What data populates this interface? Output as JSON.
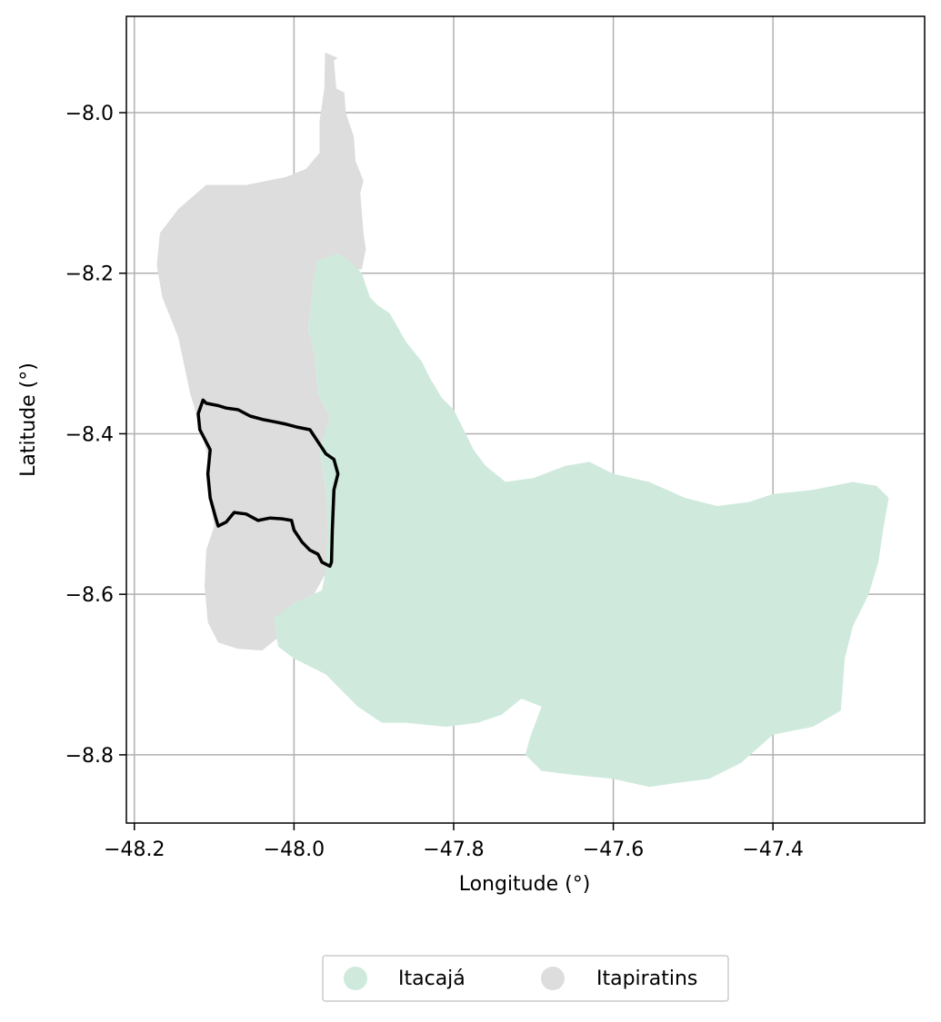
{
  "map": {
    "xlabel": "Longitude (°)",
    "ylabel": "Latitude (°)",
    "x_ticks": [
      {
        "value": -48.2,
        "label": "−48.2"
      },
      {
        "value": -48.0,
        "label": "−48.0"
      },
      {
        "value": -47.8,
        "label": "−47.8"
      },
      {
        "value": -47.6,
        "label": "−47.6"
      },
      {
        "value": -47.4,
        "label": "−47.4"
      }
    ],
    "y_ticks": [
      {
        "value": -8.0,
        "label": "−8.0"
      },
      {
        "value": -8.2,
        "label": "−8.2"
      },
      {
        "value": -8.4,
        "label": "−8.4"
      },
      {
        "value": -8.6,
        "label": "−8.6"
      },
      {
        "value": -8.8,
        "label": "−8.8"
      }
    ],
    "xlim": [
      -48.21,
      -47.21
    ],
    "ylim": [
      -8.885,
      -7.88
    ],
    "grid": true,
    "legend_position": "bottom-center",
    "legend": [
      {
        "label": "Itacajá",
        "color": "#cfeadd"
      },
      {
        "label": "Itapiratins",
        "color": "#dddddd"
      }
    ],
    "outline_color": "#000000",
    "regions": [
      {
        "name": "Itapiratins",
        "color": "#dddddd",
        "polygon": [
          [
            -47.961,
            -7.925
          ],
          [
            -47.945,
            -7.932
          ],
          [
            -47.95,
            -7.935
          ],
          [
            -47.947,
            -7.97
          ],
          [
            -47.937,
            -7.975
          ],
          [
            -47.935,
            -8.0
          ],
          [
            -47.925,
            -8.03
          ],
          [
            -47.923,
            -8.06
          ],
          [
            -47.913,
            -8.085
          ],
          [
            -47.917,
            -8.1
          ],
          [
            -47.913,
            -8.15
          ],
          [
            -47.91,
            -8.17
          ],
          [
            -47.915,
            -8.195
          ],
          [
            -47.975,
            -8.205
          ],
          [
            -47.982,
            -8.27
          ],
          [
            -47.974,
            -8.3
          ],
          [
            -47.97,
            -8.35
          ],
          [
            -47.955,
            -8.38
          ],
          [
            -47.968,
            -8.42
          ],
          [
            -47.96,
            -8.47
          ],
          [
            -47.957,
            -8.52
          ],
          [
            -47.958,
            -8.57
          ],
          [
            -47.975,
            -8.6
          ],
          [
            -48.0,
            -8.615
          ],
          [
            -48.015,
            -8.65
          ],
          [
            -48.04,
            -8.67
          ],
          [
            -48.07,
            -8.668
          ],
          [
            -48.095,
            -8.66
          ],
          [
            -48.108,
            -8.635
          ],
          [
            -48.112,
            -8.59
          ],
          [
            -48.11,
            -8.545
          ],
          [
            -48.1,
            -8.515
          ],
          [
            -48.106,
            -8.475
          ],
          [
            -48.108,
            -8.43
          ],
          [
            -48.115,
            -8.4
          ],
          [
            -48.13,
            -8.35
          ],
          [
            -48.145,
            -8.28
          ],
          [
            -48.165,
            -8.23
          ],
          [
            -48.172,
            -8.19
          ],
          [
            -48.168,
            -8.15
          ],
          [
            -48.145,
            -8.12
          ],
          [
            -48.11,
            -8.09
          ],
          [
            -48.06,
            -8.09
          ],
          [
            -48.01,
            -8.08
          ],
          [
            -47.985,
            -8.07
          ],
          [
            -47.968,
            -8.05
          ],
          [
            -47.968,
            -8.01
          ],
          [
            -47.962,
            -7.97
          ]
        ]
      },
      {
        "name": "Itacajá",
        "color": "#cfeadd",
        "polygon": [
          [
            -47.97,
            -8.185
          ],
          [
            -47.945,
            -8.175
          ],
          [
            -47.93,
            -8.185
          ],
          [
            -47.915,
            -8.2
          ],
          [
            -47.905,
            -8.23
          ],
          [
            -47.895,
            -8.24
          ],
          [
            -47.88,
            -8.25
          ],
          [
            -47.86,
            -8.285
          ],
          [
            -47.84,
            -8.31
          ],
          [
            -47.83,
            -8.33
          ],
          [
            -47.815,
            -8.355
          ],
          [
            -47.8,
            -8.37
          ],
          [
            -47.79,
            -8.39
          ],
          [
            -47.775,
            -8.42
          ],
          [
            -47.76,
            -8.44
          ],
          [
            -47.735,
            -8.46
          ],
          [
            -47.7,
            -8.455
          ],
          [
            -47.66,
            -8.44
          ],
          [
            -47.63,
            -8.435
          ],
          [
            -47.6,
            -8.45
          ],
          [
            -47.555,
            -8.46
          ],
          [
            -47.51,
            -8.48
          ],
          [
            -47.47,
            -8.49
          ],
          [
            -47.43,
            -8.485
          ],
          [
            -47.4,
            -8.475
          ],
          [
            -47.35,
            -8.47
          ],
          [
            -47.3,
            -8.46
          ],
          [
            -47.27,
            -8.465
          ],
          [
            -47.255,
            -8.48
          ],
          [
            -47.262,
            -8.52
          ],
          [
            -47.268,
            -8.56
          ],
          [
            -47.28,
            -8.6
          ],
          [
            -47.3,
            -8.64
          ],
          [
            -47.31,
            -8.68
          ],
          [
            -47.315,
            -8.745
          ],
          [
            -47.35,
            -8.765
          ],
          [
            -47.4,
            -8.775
          ],
          [
            -47.44,
            -8.81
          ],
          [
            -47.48,
            -8.83
          ],
          [
            -47.52,
            -8.835
          ],
          [
            -47.555,
            -8.84
          ],
          [
            -47.6,
            -8.83
          ],
          [
            -47.65,
            -8.825
          ],
          [
            -47.69,
            -8.82
          ],
          [
            -47.71,
            -8.8
          ],
          [
            -47.705,
            -8.78
          ],
          [
            -47.69,
            -8.74
          ],
          [
            -47.715,
            -8.73
          ],
          [
            -47.74,
            -8.75
          ],
          [
            -47.77,
            -8.76
          ],
          [
            -47.81,
            -8.765
          ],
          [
            -47.86,
            -8.76
          ],
          [
            -47.89,
            -8.76
          ],
          [
            -47.92,
            -8.74
          ],
          [
            -47.94,
            -8.72
          ],
          [
            -47.96,
            -8.7
          ],
          [
            -48.0,
            -8.68
          ],
          [
            -48.02,
            -8.665
          ],
          [
            -48.025,
            -8.63
          ],
          [
            -47.998,
            -8.61
          ],
          [
            -47.965,
            -8.595
          ],
          [
            -47.96,
            -8.57
          ],
          [
            -47.958,
            -8.52
          ],
          [
            -47.96,
            -8.47
          ],
          [
            -47.968,
            -8.42
          ],
          [
            -47.955,
            -8.38
          ],
          [
            -47.97,
            -8.35
          ],
          [
            -47.974,
            -8.3
          ],
          [
            -47.982,
            -8.27
          ],
          [
            -47.975,
            -8.205
          ]
        ]
      }
    ],
    "outline": [
      [
        -48.114,
        -8.358
      ],
      [
        -48.11,
        -8.362
      ],
      [
        -48.095,
        -8.365
      ],
      [
        -48.085,
        -8.368
      ],
      [
        -48.07,
        -8.37
      ],
      [
        -48.055,
        -8.378
      ],
      [
        -48.04,
        -8.382
      ],
      [
        -48.025,
        -8.385
      ],
      [
        -48.01,
        -8.388
      ],
      [
        -47.995,
        -8.392
      ],
      [
        -47.98,
        -8.395
      ],
      [
        -47.97,
        -8.41
      ],
      [
        -47.96,
        -8.425
      ],
      [
        -47.95,
        -8.432
      ],
      [
        -47.945,
        -8.45
      ],
      [
        -47.95,
        -8.47
      ],
      [
        -47.952,
        -8.52
      ],
      [
        -47.953,
        -8.56
      ],
      [
        -47.955,
        -8.565
      ],
      [
        -47.965,
        -8.56
      ],
      [
        -47.97,
        -8.55
      ],
      [
        -47.98,
        -8.545
      ],
      [
        -47.99,
        -8.535
      ],
      [
        -48.0,
        -8.52
      ],
      [
        -48.003,
        -8.508
      ],
      [
        -48.015,
        -8.506
      ],
      [
        -48.03,
        -8.505
      ],
      [
        -48.045,
        -8.508
      ],
      [
        -48.06,
        -8.5
      ],
      [
        -48.075,
        -8.498
      ],
      [
        -48.085,
        -8.51
      ],
      [
        -48.095,
        -8.515
      ],
      [
        -48.098,
        -8.505
      ],
      [
        -48.105,
        -8.48
      ],
      [
        -48.108,
        -8.45
      ],
      [
        -48.105,
        -8.42
      ],
      [
        -48.118,
        -8.395
      ],
      [
        -48.12,
        -8.375
      ]
    ]
  }
}
